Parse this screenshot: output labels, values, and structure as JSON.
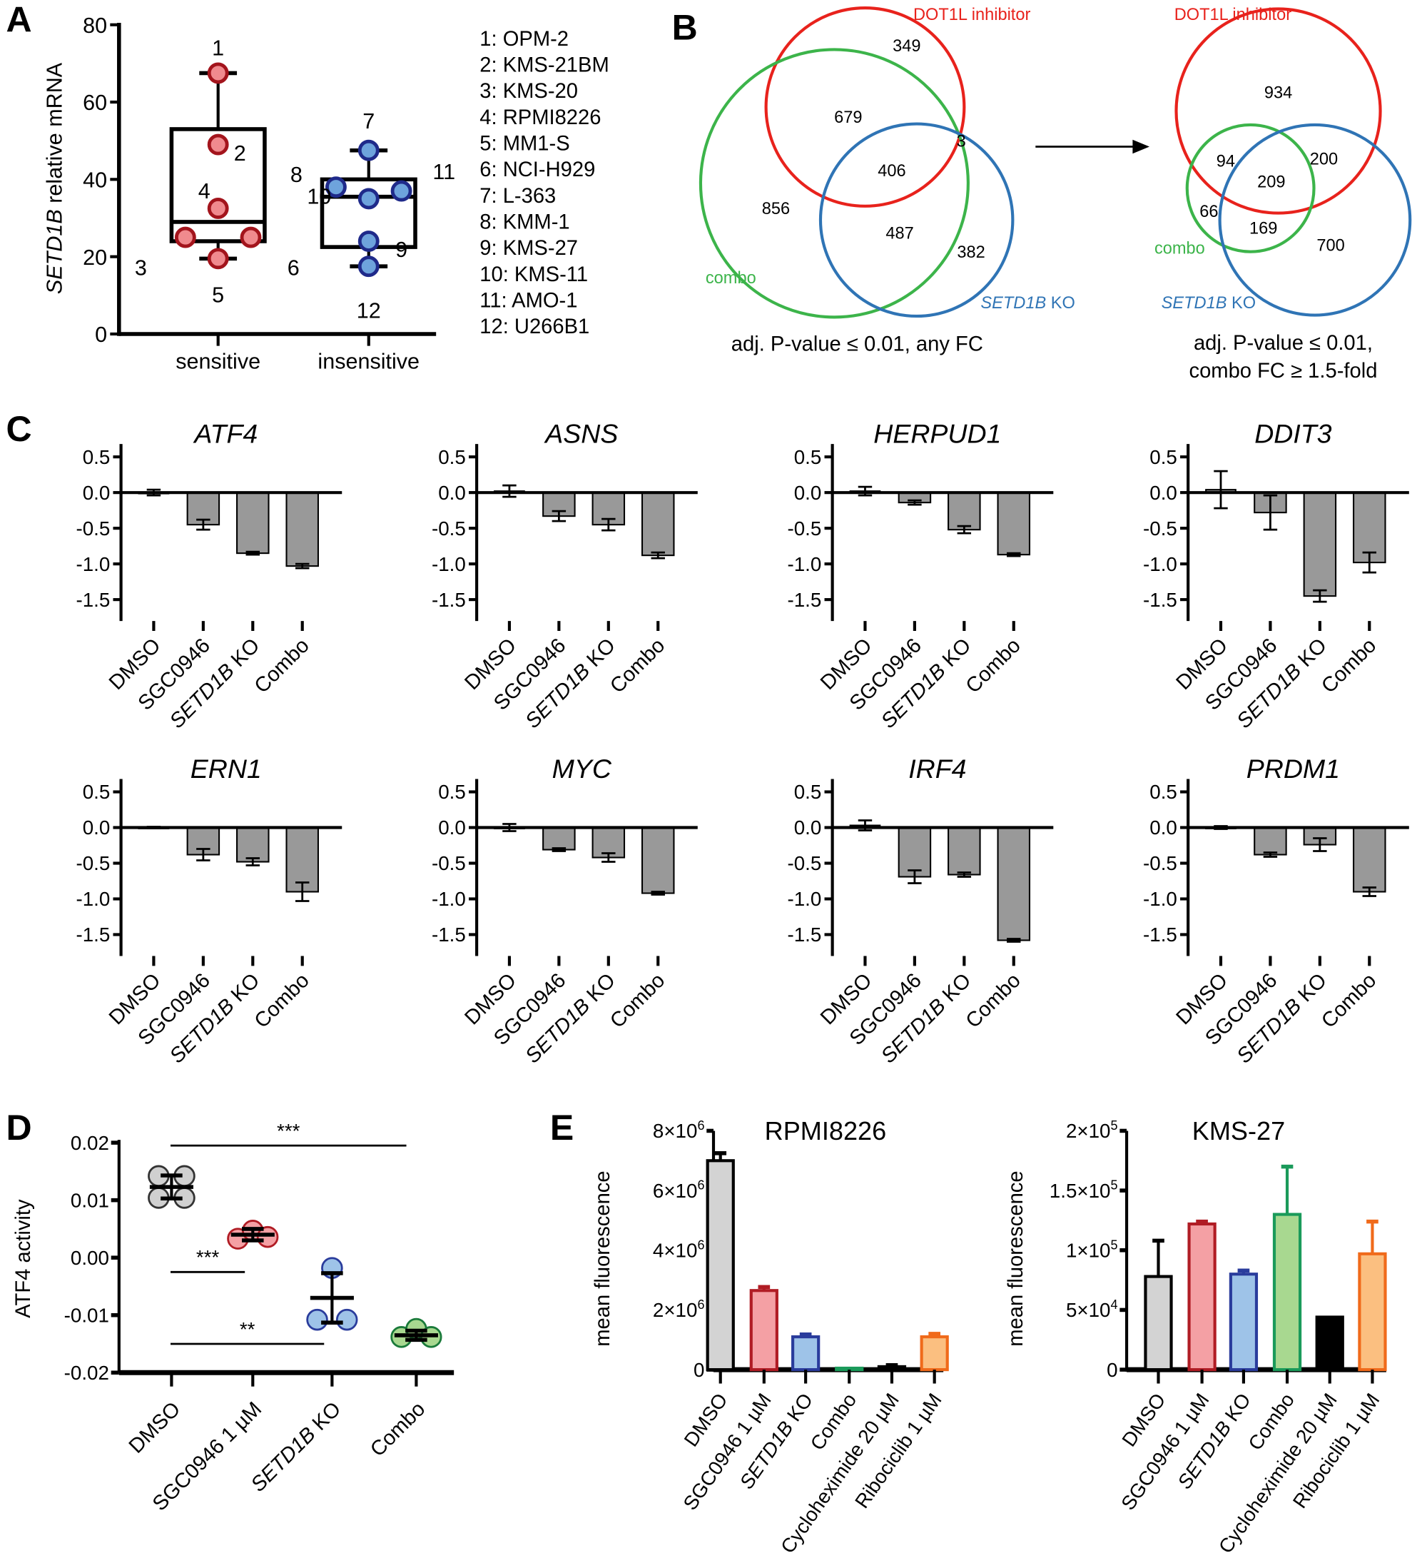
{
  "panel_letters": [
    "A",
    "B",
    "C",
    "D",
    "E"
  ],
  "chart_data": [
    {
      "id": "A",
      "type": "box",
      "ylabel_italic": "SETD1B",
      "ylabel_rest": " relative mRNA",
      "ylim": [
        0,
        80
      ],
      "yticks": [
        0,
        20,
        40,
        60,
        80
      ],
      "categories": [
        "sensitive",
        "insensitive"
      ],
      "colors": {
        "sensitive_fill": "#f08a8e",
        "sensitive_edge": "#a3141c",
        "insensitive_fill": "#6ea3dc",
        "insensitive_edge": "#1f2a8a"
      },
      "boxes": [
        {
          "category": "sensitive",
          "min": 19.5,
          "q1": 24,
          "median": 29,
          "q3": 53,
          "max": 67.5,
          "points": [
            {
              "label": "1",
              "value": 67.5
            },
            {
              "label": "2",
              "value": 49
            },
            {
              "label": "3",
              "value": 25
            },
            {
              "label": "4",
              "value": 32.5
            },
            {
              "label": "5",
              "value": 19.5
            },
            {
              "label": "6",
              "value": 25
            }
          ]
        },
        {
          "category": "insensitive",
          "min": 17.5,
          "q1": 22.5,
          "median": 35.5,
          "q3": 40,
          "max": 47.5,
          "points": [
            {
              "label": "7",
              "value": 47.5
            },
            {
              "label": "8",
              "value": 38
            },
            {
              "label": "9",
              "value": 24
            },
            {
              "label": "10",
              "value": 35
            },
            {
              "label": "11",
              "value": 37
            },
            {
              "label": "12",
              "value": 17.5
            }
          ]
        }
      ],
      "legend": [
        "1: OPM-2",
        "2: KMS-21BM",
        "3: KMS-20",
        "4: RPMI8226",
        "5: MM1-S",
        "6: NCI-H929",
        "7: L-363",
        "8: KMM-1",
        "9: KMS-27",
        "10: KMS-11",
        "11: AMO-1",
        "12: U266B1"
      ]
    },
    {
      "id": "B",
      "type": "venn",
      "diagrams": [
        {
          "sets": {
            "red": "DOT1L inhibitor",
            "green": "combo",
            "blue_italic": "SETD1B",
            "blue_rest": " KO"
          },
          "regions": {
            "red_only": "349",
            "red_green": "679",
            "all": "406",
            "red_blue": "3",
            "green_only": "856",
            "green_blue": "487",
            "blue_only": "382"
          },
          "caption": [
            "adj. P-value ≤ 0.01, any FC"
          ]
        },
        {
          "sets": {
            "red": "DOT1L inhibitor",
            "green": "combo",
            "blue_italic": "SETD1B",
            "blue_rest": " KO"
          },
          "regions": {
            "red_only": "934",
            "red_green": "94",
            "all": "209",
            "red_blue": "200",
            "green_only": "66",
            "green_blue": "169",
            "blue_only": "700"
          },
          "caption": [
            "adj. P-value ≤ 0.01,",
            "combo FC ≥ 1.5-fold"
          ]
        }
      ],
      "colors": {
        "red": "#e8221c",
        "green": "#3cb44a",
        "blue": "#2f74b5"
      }
    },
    {
      "id": "C",
      "type": "bar",
      "categories": [
        "DMSO",
        "SGC0946",
        "SETD1B KO",
        "Combo"
      ],
      "ylim": [
        -1.8,
        0.6
      ],
      "yticks": [
        "0.5",
        "0.0",
        "-0.5",
        "-1.0",
        "-1.5"
      ],
      "bar_color": "#999999",
      "genes": [
        {
          "title": "ATF4",
          "values": [
            0.0,
            -0.45,
            -0.85,
            -1.03
          ],
          "errors": [
            0.04,
            0.07,
            0.02,
            0.03
          ]
        },
        {
          "title": "ASNS",
          "values": [
            0.02,
            -0.33,
            -0.45,
            -0.88
          ],
          "errors": [
            0.08,
            0.07,
            0.08,
            0.04
          ]
        },
        {
          "title": "HERPUD1",
          "values": [
            0.02,
            -0.14,
            -0.52,
            -0.87
          ],
          "errors": [
            0.06,
            0.03,
            0.05,
            0.02
          ]
        },
        {
          "title": "DDIT3",
          "values": [
            0.04,
            -0.28,
            -1.45,
            -0.98
          ],
          "errors": [
            0.26,
            0.24,
            0.08,
            0.14
          ]
        },
        {
          "title": "ERN1",
          "values": [
            0.0,
            -0.38,
            -0.48,
            -0.9
          ],
          "errors": [
            0.01,
            0.08,
            0.05,
            0.13
          ]
        },
        {
          "title": "MYC",
          "values": [
            0.0,
            -0.31,
            -0.42,
            -0.92
          ],
          "errors": [
            0.05,
            0.02,
            0.06,
            0.02
          ]
        },
        {
          "title": "IRF4",
          "values": [
            0.03,
            -0.69,
            -0.66,
            -1.58
          ],
          "errors": [
            0.07,
            0.09,
            0.03,
            0.02
          ]
        },
        {
          "title": "PRDM1",
          "values": [
            0.0,
            -0.38,
            -0.24,
            -0.9
          ],
          "errors": [
            0.02,
            0.03,
            0.09,
            0.06
          ]
        }
      ]
    },
    {
      "id": "D",
      "type": "scatter",
      "ylabel": "ATF4 activity",
      "ylim": [
        -0.02,
        0.02
      ],
      "yticks": [
        "0.02",
        "0.01",
        "0.00",
        "-0.01",
        "-0.02"
      ],
      "categories": [
        "DMSO",
        "SGC0946 1 µM",
        "SETD1B KO",
        "Combo"
      ],
      "colors": [
        [
          "#d0d0d0",
          "#333333"
        ],
        [
          "#f4a0a4",
          "#b01c24"
        ],
        [
          "#9ec3e8",
          "#2a3c9c"
        ],
        [
          "#a8d890",
          "#1a7a3a"
        ]
      ],
      "groups": [
        {
          "points": [
            0.0142,
            0.0142,
            0.0104,
            0.0104
          ],
          "mean": 0.0123,
          "sd": 0.002
        },
        {
          "points": [
            0.0033,
            0.0047,
            0.0036
          ],
          "mean": 0.004,
          "sd": 0.001
        },
        {
          "points": [
            -0.0108,
            -0.0018,
            -0.0108
          ],
          "mean": -0.007,
          "sd": 0.0043
        },
        {
          "points": [
            -0.0138,
            -0.0124,
            -0.0138
          ],
          "mean": -0.0135,
          "sd": 0.0008
        }
      ],
      "significance": [
        {
          "from": 0,
          "to": 3,
          "y": 0.0195,
          "label": "***"
        },
        {
          "from": 0,
          "to": 1,
          "y": -0.0025,
          "label": "***"
        },
        {
          "from": 0,
          "to": 2,
          "y": -0.015,
          "label": "**"
        }
      ]
    },
    {
      "id": "E",
      "type": "bar",
      "ylabel": "mean fluorescence",
      "categories": [
        "DMSO",
        "SGC0946 1 µM",
        "SETD1B KO",
        "Combo",
        "Cycloheximide 20 µM",
        "Ribociclib 1 µM"
      ],
      "colors": [
        [
          "#d3d3d3",
          "#000000"
        ],
        [
          "#f4a0a4",
          "#b01c24"
        ],
        [
          "#9ec3e8",
          "#2a3c9c"
        ],
        [
          "#a8d890",
          "#1a9a5a"
        ],
        [
          "#000000",
          "#000000"
        ],
        [
          "#fbbf80",
          "#f06a1a"
        ]
      ],
      "plots": [
        {
          "title": "RPMI8226",
          "ylim": [
            0,
            8000000
          ],
          "yticks": [
            {
              "value": 0,
              "base": "0",
              "exp": ""
            },
            {
              "value": 2000000,
              "base": "2×10",
              "exp": "6"
            },
            {
              "value": 4000000,
              "base": "4×10",
              "exp": "6"
            },
            {
              "value": 6000000,
              "base": "6×10",
              "exp": "6"
            },
            {
              "value": 8000000,
              "base": "8×10",
              "exp": "6"
            }
          ],
          "values": [
            7000000,
            2650000,
            1100000,
            50000,
            100000,
            1100000
          ],
          "errors": [
            250000,
            120000,
            80000,
            0,
            50000,
            100000
          ]
        },
        {
          "title": "KMS-27",
          "ylim": [
            0,
            200000
          ],
          "yticks": [
            {
              "value": 0,
              "base": "0",
              "exp": ""
            },
            {
              "value": 50000,
              "base": "5×10",
              "exp": "4"
            },
            {
              "value": 100000,
              "base": "1×10",
              "exp": "5"
            },
            {
              "value": 150000,
              "base": "1.5×10",
              "exp": "5"
            },
            {
              "value": 200000,
              "base": "2×10",
              "exp": "5"
            }
          ],
          "values": [
            78000,
            122000,
            80000,
            130000,
            44000,
            97000
          ],
          "errors": [
            30000,
            2000,
            3000,
            40000,
            0,
            27000
          ]
        }
      ]
    }
  ]
}
